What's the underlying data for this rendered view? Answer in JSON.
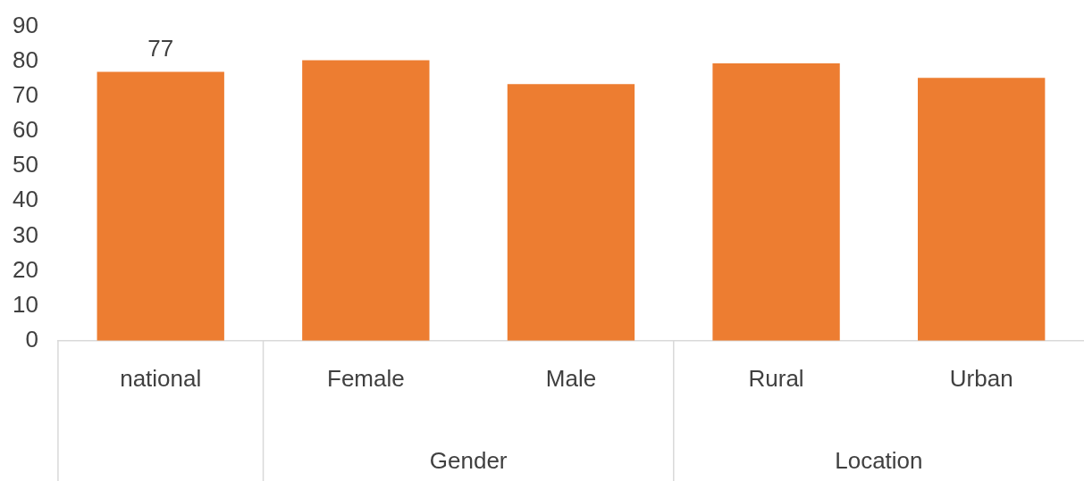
{
  "chart_data": {
    "type": "bar",
    "categories": [
      "national",
      "Female",
      "Male",
      "Rural",
      "Urban"
    ],
    "values": [
      77,
      80.3,
      73.5,
      79.4,
      75.3
    ],
    "value_labels": [
      "77",
      null,
      null,
      null,
      null
    ],
    "color": "#ed7d31",
    "ylim": [
      0,
      90
    ],
    "yticks": [
      0,
      10,
      20,
      30,
      40,
      50,
      60,
      70,
      80,
      90
    ],
    "grid": false,
    "legend": false,
    "annotations": [
      "Gender",
      "Location"
    ]
  }
}
